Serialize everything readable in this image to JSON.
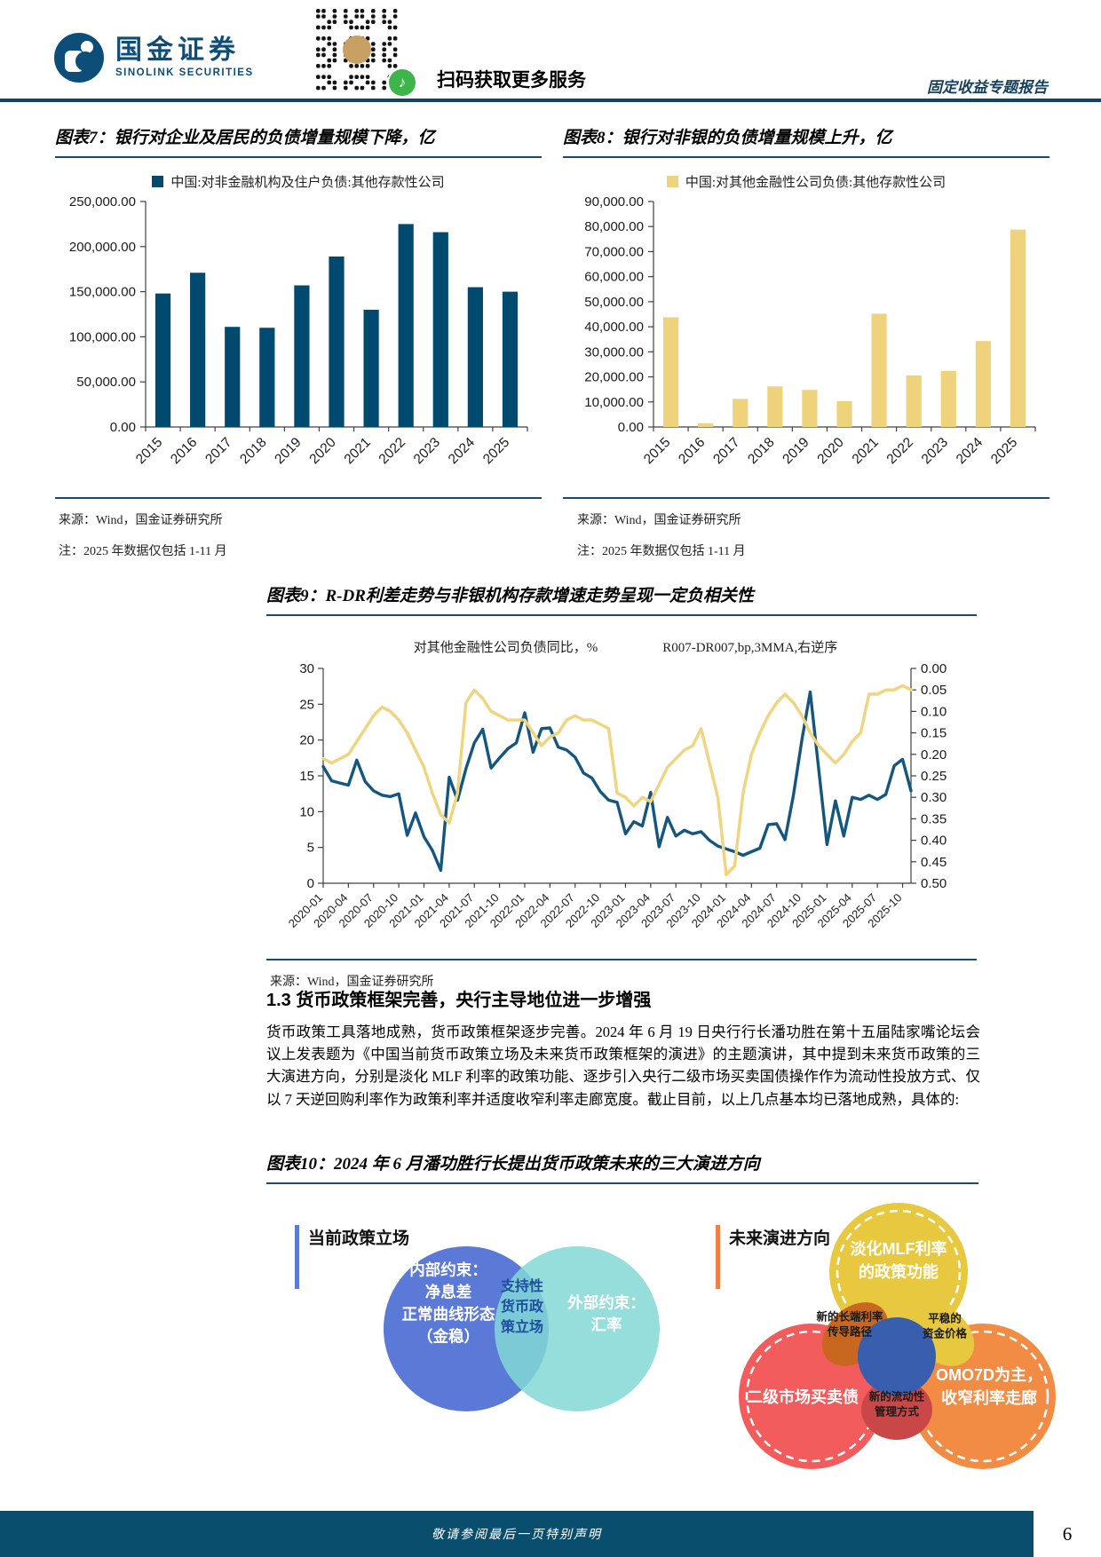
{
  "header": {
    "logo_cn": "国金证券",
    "logo_en": "SINOLINK SECURITIES",
    "qr_caption": "扫码获取更多服务",
    "report_type": "固定收益专题报告"
  },
  "figures": {
    "fig7": {
      "title": "图表7：银行对企业及居民的负债增量规模下降，亿",
      "source": "来源：Wind，国金证券研究所",
      "note": "注：2025 年数据仅包括 1-11 月"
    },
    "fig8": {
      "title": "图表8：银行对非银的负债增量规模上升，亿",
      "source": "来源：Wind，国金证券研究所",
      "note": "注：2025 年数据仅包括 1-11 月"
    },
    "fig9": {
      "title": "图表9：R-DR利差走势与非银机构存款增速走势呈现一定负相关性",
      "source": "来源：Wind，国金证券研究所"
    },
    "fig10": {
      "title": "图表10：2024 年 6 月潘功胜行长提出货币政策未来的三大演进方向"
    }
  },
  "section": {
    "heading": "1.3 货币政策框架完善，央行主导地位进一步增强",
    "paragraph": "货币政策工具落地成熟，货币政策框架逐步完善。2024 年 6 月 19 日央行行长潘功胜在第十五届陆家嘴论坛会议上发表题为《中国当前货币政策立场及未来货币政策框架的演进》的主题演讲，其中提到未来货币政策的三大演进方向，分别是淡化 MLF 利率的政策功能、逐步引入央行二级市场买卖国债操作作为流动性投放方式、仅以 7 天逆回购利率作为政策利率并适度收窄利率走廊宽度。截止目前，以上几点基本均已落地成熟，具体的:"
  },
  "diagram": {
    "current": {
      "label": "当前政策立场",
      "accent": "#5b7ad7",
      "internal_color": "#5b79d6",
      "external_color": "#82d8d6",
      "internal_lines": [
        "内部约束：",
        "净息差",
        "正常曲线形态",
        "（金稳）"
      ],
      "external_lines": [
        "外部约束：",
        "汇率"
      ],
      "overlap_lines": [
        "支持性",
        "货币政",
        "策立场"
      ],
      "overlap_text_color": "#1d4f9e"
    },
    "future": {
      "label": "未来演进方向",
      "accent": "#f08040",
      "center_color": "#3a5eae",
      "petals": [
        {
          "lines": [
            "淡化MLF利率",
            "的政策功能"
          ],
          "color": "#e8c83e"
        },
        {
          "lines": [
            "二级市场买卖债"
          ],
          "color": "#f25c5c"
        },
        {
          "lines": [
            "OMO7D为主，",
            "收窄利率走廊"
          ],
          "color": "#f28c44"
        }
      ],
      "overlaps": [
        {
          "lines": [
            "新的长端利率",
            "传导路径"
          ],
          "color": "#c8671f"
        },
        {
          "lines": [
            "平稳的",
            "资金价格"
          ],
          "color": "#e8c83e"
        },
        {
          "lines": [
            "新的流动性",
            "管理方式"
          ],
          "color": "#c94747"
        }
      ]
    }
  },
  "footer": {
    "disclaimer": "敬请参阅最后一页特别声明",
    "page_number": "6"
  },
  "chart_data": [
    {
      "type": "bar",
      "id": "fig7",
      "title": "图表7：银行对企业及居民的负债增量规模下降，亿",
      "legend": "中国:对非金融机构及住户负债:其他存款性公司",
      "categories": [
        "2015",
        "2016",
        "2017",
        "2018",
        "2019",
        "2020",
        "2021",
        "2022",
        "2023",
        "2024",
        "2025"
      ],
      "values": [
        148000,
        171000,
        111000,
        110000,
        157000,
        189000,
        130000,
        225000,
        216000,
        155000,
        150000
      ],
      "ylim": [
        0,
        250000
      ],
      "ystep": 50000,
      "color": "#004a6f",
      "grid": false,
      "legend_position": "top"
    },
    {
      "type": "bar",
      "id": "fig8",
      "title": "图表8：银行对非银的负债增量规模上升，亿",
      "legend": "中国:对其他金融性公司负债:其他存款性公司",
      "categories": [
        "2015",
        "2016",
        "2017",
        "2018",
        "2019",
        "2020",
        "2021",
        "2022",
        "2023",
        "2024",
        "2025"
      ],
      "values": [
        43800,
        1500,
        11200,
        16200,
        14800,
        10300,
        45200,
        20600,
        22400,
        34300,
        78800
      ],
      "ylim": [
        0,
        90000
      ],
      "ystep": 10000,
      "color": "#efd27c",
      "grid": false,
      "legend_position": "top"
    },
    {
      "type": "line",
      "id": "fig9",
      "title": "图表9：R-DR利差走势与非银机构存款增速走势呈现一定负相关性",
      "x_start": "2020-01",
      "x_freq": "monthly",
      "x_ticks": [
        "2020-01",
        "2020-04",
        "2020-07",
        "2020-10",
        "2021-01",
        "2021-04",
        "2021-07",
        "2021-10",
        "2022-01",
        "2022-04",
        "2022-07",
        "2022-10",
        "2023-01",
        "2023-04",
        "2023-07",
        "2023-10",
        "2024-01",
        "2024-04",
        "2024-07",
        "2024-10",
        "2025-01",
        "2025-04",
        "2025-07",
        "2025-10"
      ],
      "left_ylim": [
        0,
        30
      ],
      "left_ystep": 5,
      "right_ylim": [
        0,
        0.5
      ],
      "right_ystep": 0.05,
      "right_inverted": true,
      "grid": false,
      "legend_position": "top",
      "series": [
        {
          "name": "对其他金融性公司负债同比，%",
          "axis": "left",
          "color": "#14567e",
          "values": [
            16.3,
            14.3,
            14.0,
            13.7,
            17.2,
            14.2,
            12.9,
            12.3,
            12.1,
            12.5,
            6.7,
            9.8,
            6.5,
            4.6,
            1.8,
            14.8,
            11.6,
            16.0,
            19.6,
            21.5,
            16.1,
            17.5,
            18.8,
            19.6,
            23.8,
            18.3,
            21.6,
            21.7,
            19.0,
            18.6,
            17.6,
            15.4,
            14.7,
            12.8,
            11.6,
            11.3,
            6.9,
            8.6,
            8.0,
            12.7,
            5.1,
            9.2,
            6.6,
            7.4,
            6.9,
            7.2,
            6.0,
            5.2,
            4.8,
            4.4,
            3.9,
            4.4,
            4.9,
            8.2,
            8.3,
            6.1,
            12.3,
            20.0,
            26.7,
            16.0,
            5.4,
            11.5,
            6.6,
            12.0,
            11.7,
            12.3,
            11.7,
            12.4,
            16.4,
            17.3,
            12.9
          ]
        },
        {
          "name": "R007-DR007,bp,3MMA,右逆序",
          "axis": "right_inverted",
          "color": "#f0d47e",
          "values": [
            0.21,
            0.22,
            0.21,
            0.2,
            0.17,
            0.14,
            0.11,
            0.09,
            0.1,
            0.12,
            0.15,
            0.19,
            0.23,
            0.29,
            0.34,
            0.36,
            0.29,
            0.08,
            0.05,
            0.07,
            0.1,
            0.11,
            0.12,
            0.12,
            0.12,
            0.15,
            0.18,
            0.16,
            0.15,
            0.12,
            0.11,
            0.12,
            0.12,
            0.13,
            0.14,
            0.29,
            0.3,
            0.32,
            0.3,
            0.31,
            0.27,
            0.23,
            0.21,
            0.19,
            0.18,
            0.14,
            0.22,
            0.3,
            0.48,
            0.46,
            0.29,
            0.2,
            0.15,
            0.11,
            0.08,
            0.06,
            0.08,
            0.11,
            0.15,
            0.18,
            0.2,
            0.22,
            0.2,
            0.17,
            0.15,
            0.06,
            0.06,
            0.05,
            0.05,
            0.04,
            0.05
          ]
        }
      ]
    }
  ]
}
